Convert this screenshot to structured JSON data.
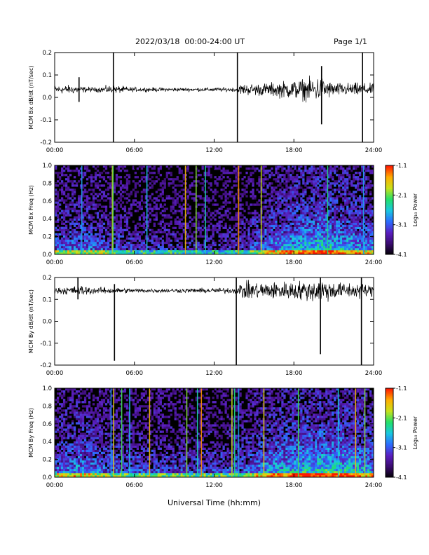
{
  "header": {
    "title": "2022/03/18  00:00-24:00 UT",
    "page": "Page 1/1"
  },
  "colors": {
    "trace": "#000000",
    "spectrogram_background": "#000000",
    "colorbar": [
      "#000000",
      "#3a0b6e",
      "#5a1fc0",
      "#2b6bff",
      "#19c7e0",
      "#22e06a",
      "#c8e11b",
      "#ffae00",
      "#ff1a00"
    ]
  },
  "chart_data": [
    {
      "type": "line",
      "title": "",
      "xlabel": "",
      "ylabel": "MCM Bx dB/dt (nT/sec)",
      "xlim": [
        "00:00",
        "24:00"
      ],
      "ylim": [
        -0.2,
        0.2
      ],
      "x_ticks": [
        "00:00",
        "06:00",
        "12:00",
        "18:00",
        "24:00"
      ],
      "y_ticks": [
        "0.2",
        "0.1",
        "0.0",
        "-0.1",
        "-0.2"
      ],
      "grid": false,
      "series": [
        {
          "baseline": 0.035,
          "noise_profile_hours": [
            0,
            1.5,
            2,
            3,
            4.3,
            6,
            10,
            13.8,
            14,
            16,
            19,
            20,
            21,
            23,
            24
          ],
          "noise_amplitude": [
            0.02,
            0.02,
            0.015,
            0.01,
            0.02,
            0.01,
            0.008,
            0.01,
            0.025,
            0.03,
            0.05,
            0.06,
            0.03,
            0.03,
            0.025
          ],
          "spikes": [
            {
              "x": "01:50",
              "min": -0.02,
              "max": 0.09
            },
            {
              "x": "04:25",
              "min": -0.2,
              "max": 0.2
            },
            {
              "x": "13:45",
              "min": -0.2,
              "max": 0.2
            },
            {
              "x": "20:05",
              "min": -0.12,
              "max": 0.14
            },
            {
              "x": "23:10",
              "min": -0.2,
              "max": 0.2
            }
          ]
        }
      ]
    },
    {
      "type": "heatmap",
      "title": "",
      "xlabel": "",
      "ylabel": "MCM Bx Freq (Hz)",
      "xlim": [
        "00:00",
        "24:00"
      ],
      "ylim": [
        0.0,
        1.0
      ],
      "x_ticks": [
        "00:00",
        "06:00",
        "12:00",
        "18:00",
        "24:00"
      ],
      "y_ticks": [
        "1.0",
        "0.8",
        "0.6",
        "0.4",
        "0.2",
        "0.0"
      ],
      "colorbar": {
        "label": "Log₁₀ Power",
        "ticks": [
          "-1.1",
          "-2.1",
          "-3.1",
          "-4.1"
        ],
        "range": [
          -4.1,
          -1.1
        ]
      },
      "activity_profile_hours": [
        0,
        2,
        4,
        6,
        12,
        14,
        16,
        19,
        20,
        22,
        24
      ],
      "activity_level": [
        0.5,
        0.55,
        0.45,
        0.35,
        0.3,
        0.35,
        0.6,
        0.8,
        0.85,
        0.75,
        0.6
      ],
      "vertical_streaks_hours": [
        2.0,
        4.3,
        4.35,
        6.9,
        9.8,
        10.6,
        11.3,
        13.8,
        15.5,
        20.5,
        23.2
      ]
    },
    {
      "type": "line",
      "title": "",
      "xlabel": "",
      "ylabel": "MCM By dB/dt (nT/sec)",
      "xlim": [
        "00:00",
        "24:00"
      ],
      "ylim": [
        -0.2,
        0.2
      ],
      "x_ticks": [
        "00:00",
        "06:00",
        "12:00",
        "18:00",
        "24:00"
      ],
      "y_ticks": [
        "0.2",
        "0.1",
        "0.0",
        "-0.1",
        "-0.2"
      ],
      "grid": false,
      "series": [
        {
          "baseline": 0.14,
          "noise_profile_hours": [
            0,
            1.5,
            2,
            3,
            4.3,
            6,
            10,
            13.8,
            14,
            16,
            19,
            20,
            21,
            23,
            24
          ],
          "noise_amplitude": [
            0.015,
            0.02,
            0.025,
            0.015,
            0.015,
            0.01,
            0.01,
            0.015,
            0.04,
            0.04,
            0.045,
            0.06,
            0.04,
            0.035,
            0.025
          ],
          "spikes": [
            {
              "x": "01:45",
              "min": 0.1,
              "max": 0.2
            },
            {
              "x": "04:30",
              "min": -0.18,
              "max": 0.17
            },
            {
              "x": "13:40",
              "min": -0.2,
              "max": 0.2
            },
            {
              "x": "20:00",
              "min": -0.15,
              "max": 0.2
            },
            {
              "x": "23:05",
              "min": -0.2,
              "max": 0.2
            }
          ]
        }
      ]
    },
    {
      "type": "heatmap",
      "title": "",
      "xlabel": "Universal Time (hh:mm)",
      "ylabel": "MCM By Freq (Hz)",
      "xlim": [
        "00:00",
        "24:00"
      ],
      "ylim": [
        0.0,
        1.0
      ],
      "x_ticks": [
        "00:00",
        "06:00",
        "12:00",
        "18:00",
        "24:00"
      ],
      "y_ticks": [
        "1.0",
        "0.8",
        "0.6",
        "0.4",
        "0.2",
        "0.0"
      ],
      "colorbar": {
        "label": "Log₁₀ Power",
        "ticks": [
          "-1.1",
          "-2.1",
          "-3.1",
          "-4.1"
        ],
        "range": [
          -4.1,
          -1.1
        ]
      },
      "activity_profile_hours": [
        0,
        2,
        4,
        6,
        12,
        14,
        16,
        19,
        20,
        22,
        24
      ],
      "activity_level": [
        0.55,
        0.65,
        0.5,
        0.45,
        0.4,
        0.45,
        0.7,
        0.85,
        0.9,
        0.85,
        0.65
      ],
      "vertical_streaks_hours": [
        4.2,
        4.4,
        5.0,
        5.6,
        7.1,
        9.9,
        10.7,
        11.0,
        13.3,
        13.5,
        13.8,
        15.7,
        18.3,
        21.3,
        22.6,
        23.3
      ]
    }
  ]
}
